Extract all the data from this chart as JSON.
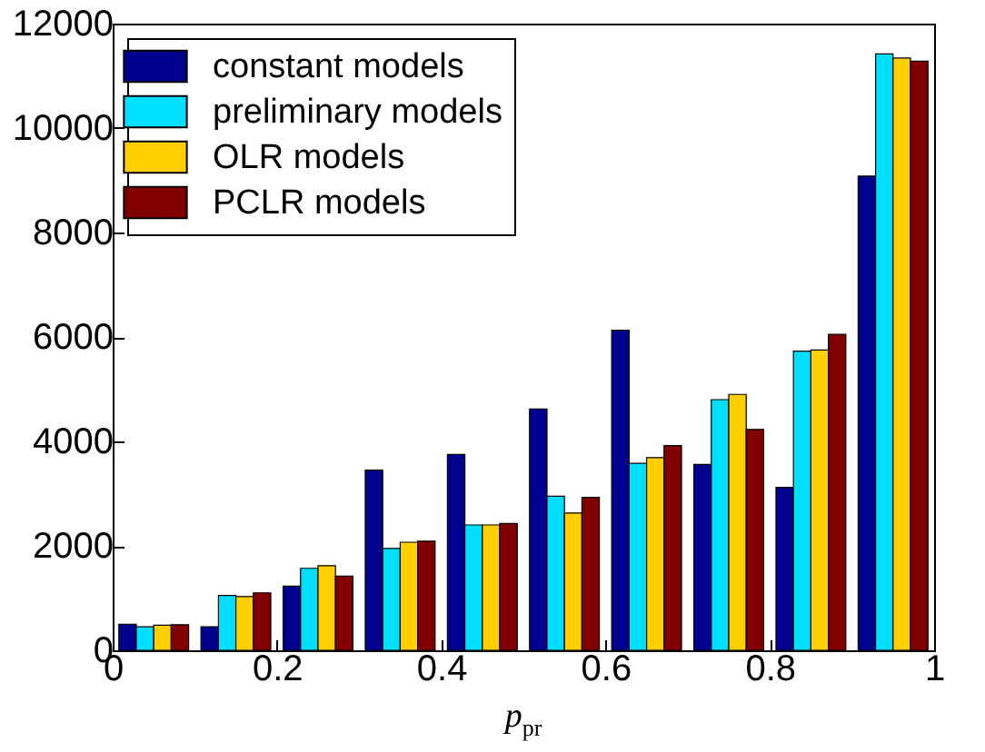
{
  "chart_data": {
    "type": "bar",
    "xlabel": "p$_{pr}$",
    "x": [
      0.05,
      0.15,
      0.25,
      0.35,
      0.45,
      0.55,
      0.65,
      0.75,
      0.85,
      0.95
    ],
    "series": [
      {
        "name": "constant models",
        "color": "#00008f",
        "values": [
          500,
          450,
          1230,
          3450,
          3750,
          4620,
          6130,
          3560,
          3120,
          9080
        ]
      },
      {
        "name": "preliminary models",
        "color": "#00dfff",
        "values": [
          450,
          1050,
          1570,
          1950,
          2400,
          2950,
          3580,
          4800,
          5730,
          11420
        ]
      },
      {
        "name": "OLR models",
        "color": "#ffcf00",
        "values": [
          480,
          1030,
          1620,
          2070,
          2400,
          2630,
          3690,
          4900,
          5750,
          11340
        ]
      },
      {
        "name": "PCLR models",
        "color": "#800000",
        "values": [
          490,
          1100,
          1420,
          2090,
          2430,
          2930,
          3920,
          4230,
          6050,
          11280
        ]
      }
    ],
    "xlim": [
      0,
      1
    ],
    "xticks": [
      0,
      0.2,
      0.4,
      0.6,
      0.8,
      1
    ],
    "ylim": [
      0,
      12000
    ],
    "yticks": [
      0,
      2000,
      4000,
      6000,
      8000,
      10000,
      12000
    ],
    "legend": "top left"
  }
}
